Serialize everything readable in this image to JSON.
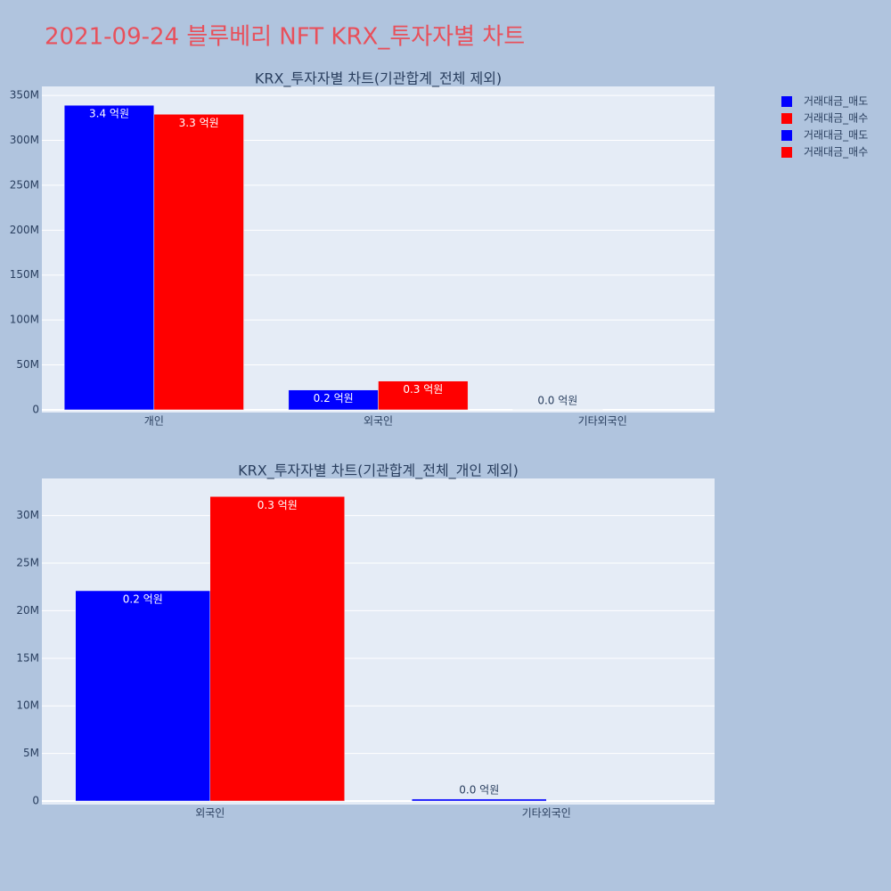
{
  "title": "2021-09-24 블루베리 NFT KRX_투자자별 차트",
  "chart_data": [
    {
      "type": "bar",
      "title": "KRX_투자자별 차트(기관합계_전체 제외)",
      "categories": [
        "개인",
        "외국인",
        "기타외국인"
      ],
      "series": [
        {
          "name": "거래대금_매도",
          "color": "#0000ff",
          "values": [
            339000000,
            22100000,
            200000
          ],
          "value_labels": [
            "3.4 억원",
            "0.2 억원",
            "0.0 억원"
          ]
        },
        {
          "name": "거래대금_매수",
          "color": "#ff0000",
          "values": [
            329000000,
            32000000,
            0
          ],
          "value_labels": [
            "3.3 억원",
            "0.3 억원",
            null
          ]
        }
      ],
      "ylim": [
        -3000000,
        360000000
      ],
      "yticks": [
        {
          "value": 0,
          "label": "0"
        },
        {
          "value": 50000000,
          "label": "50M"
        },
        {
          "value": 100000000,
          "label": "100M"
        },
        {
          "value": 150000000,
          "label": "150M"
        },
        {
          "value": 200000000,
          "label": "200M"
        },
        {
          "value": 250000000,
          "label": "250M"
        },
        {
          "value": 300000000,
          "label": "300M"
        },
        {
          "value": 350000000,
          "label": "350M"
        }
      ],
      "grid": true
    },
    {
      "type": "bar",
      "title": "KRX_투자자별 차트(기관합계_전체_개인 제외)",
      "categories": [
        "외국인",
        "기타외국인"
      ],
      "series": [
        {
          "name": "거래대금_매도",
          "color": "#0000ff",
          "values": [
            22100000,
            200000
          ],
          "value_labels": [
            "0.2 억원",
            "0.0 억원"
          ]
        },
        {
          "name": "거래대금_매수",
          "color": "#ff0000",
          "values": [
            32000000,
            0
          ],
          "value_labels": [
            "0.3 억원",
            null
          ]
        }
      ],
      "ylim": [
        -375000,
        33900000
      ],
      "yticks": [
        {
          "value": 0,
          "label": "0"
        },
        {
          "value": 5000000,
          "label": "5M"
        },
        {
          "value": 10000000,
          "label": "10M"
        },
        {
          "value": 15000000,
          "label": "15M"
        },
        {
          "value": 20000000,
          "label": "20M"
        },
        {
          "value": 25000000,
          "label": "25M"
        },
        {
          "value": 30000000,
          "label": "30M"
        }
      ],
      "grid": true
    }
  ]
}
